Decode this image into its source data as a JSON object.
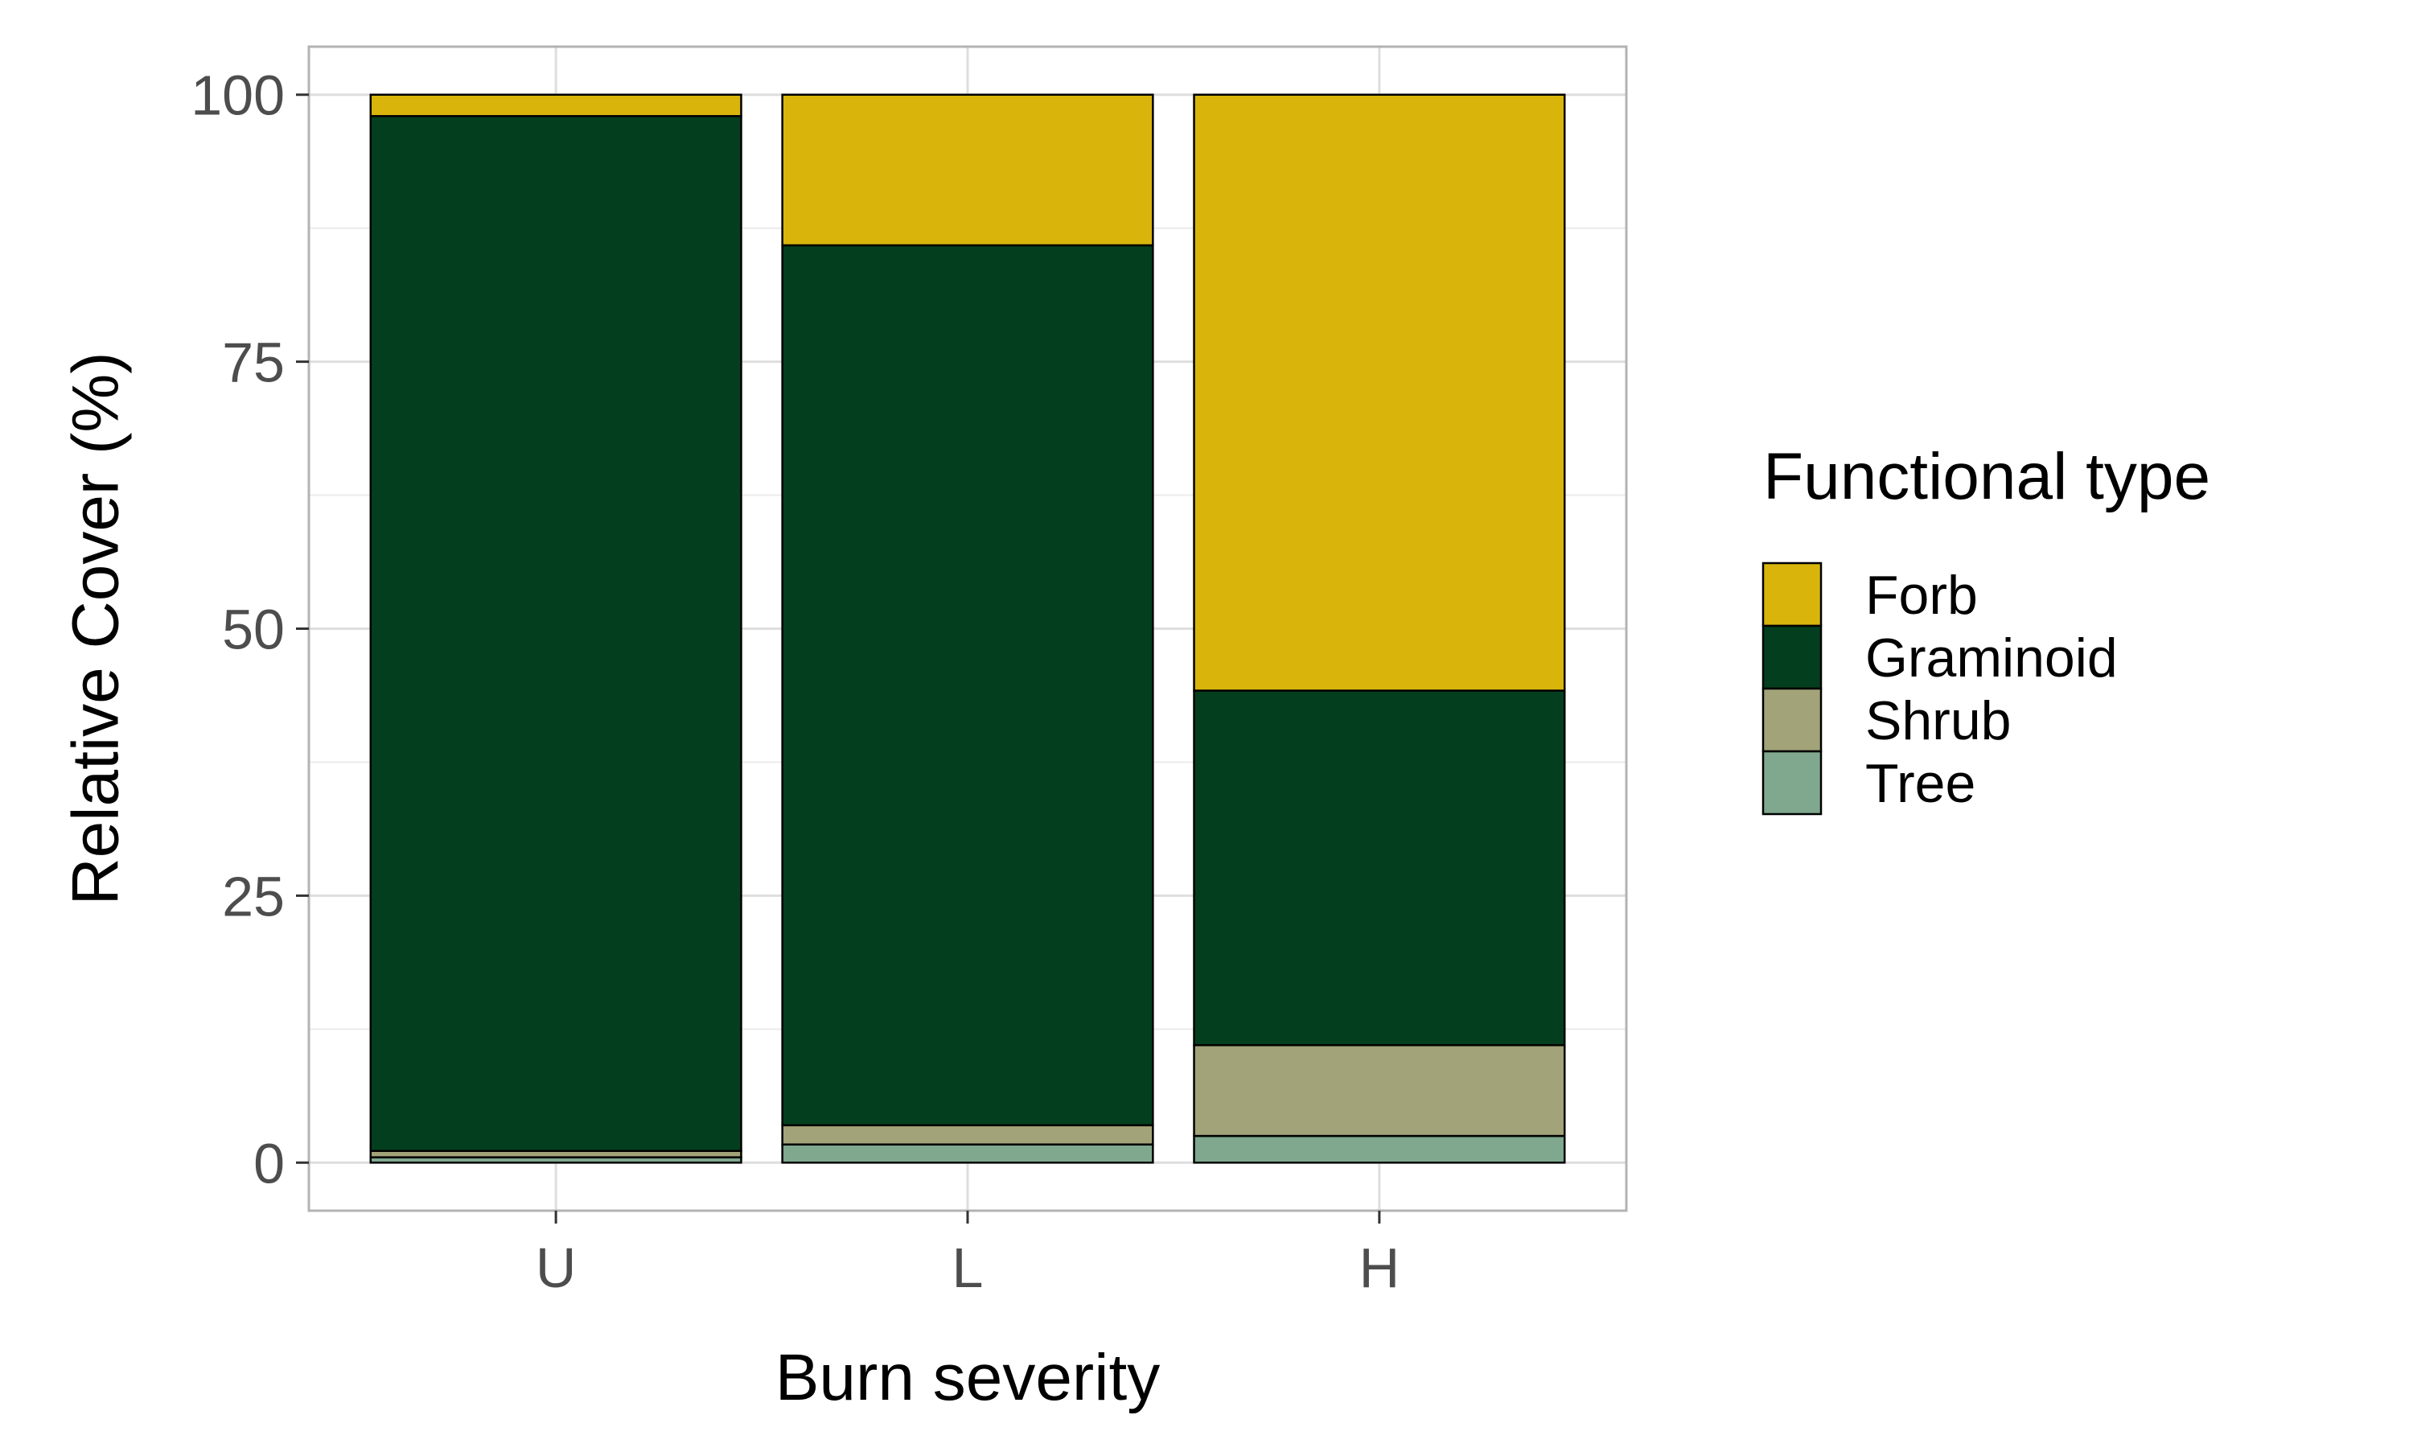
{
  "chart_data": {
    "type": "bar",
    "stacked": true,
    "xlabel": "Burn severity",
    "ylabel": "Relative Cover (%)",
    "ylim": [
      -4.5,
      104.5
    ],
    "yticks": [
      0,
      25,
      50,
      75,
      100
    ],
    "grid": true,
    "legend_title": "Functional type",
    "legend_position": "right",
    "categories": [
      "U",
      "L",
      "H"
    ],
    "series": [
      {
        "name": "Tree",
        "color": "#7fa88e",
        "values": [
          0.5,
          1.7,
          2.5
        ]
      },
      {
        "name": "Shrub",
        "color": "#a3a379",
        "values": [
          0.6,
          1.8,
          8.5
        ]
      },
      {
        "name": "Graminoid",
        "color": "#033f1e",
        "values": [
          96.9,
          82.4,
          33.2
        ]
      },
      {
        "name": "Forb",
        "color": "#d9b50b",
        "values": [
          2.0,
          14.1,
          55.8
        ]
      }
    ],
    "legend_order": [
      "Forb",
      "Graminoid",
      "Shrub",
      "Tree"
    ]
  }
}
